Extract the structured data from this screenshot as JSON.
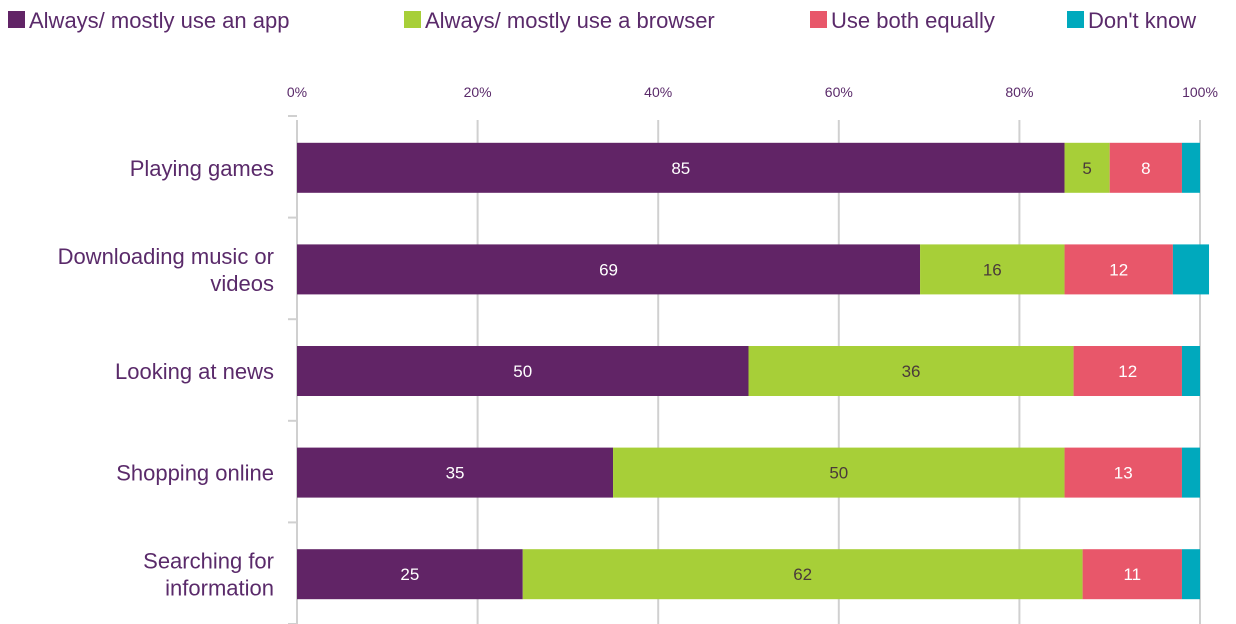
{
  "chart_data": {
    "type": "bar",
    "orientation": "horizontal",
    "stacked": true,
    "categories": [
      [
        "Playing games"
      ],
      [
        "Downloading music or",
        "videos"
      ],
      [
        "Looking at news"
      ],
      [
        "Shopping online"
      ],
      [
        "Searching for",
        "information"
      ]
    ],
    "series": [
      {
        "name": "Always/ mostly use an app",
        "color": "#612466",
        "label_color": "#ffffff",
        "values": [
          85,
          69,
          50,
          35,
          25
        ],
        "labels": [
          "85",
          "69",
          "50",
          "35",
          "25"
        ]
      },
      {
        "name": "Always/ mostly use a browser",
        "color": "#a7cf38",
        "label_color": "#4a3a3a",
        "values": [
          5,
          16,
          36,
          50,
          62
        ],
        "labels": [
          "5",
          "16",
          "36",
          "50",
          "62"
        ]
      },
      {
        "name": "Use both equally",
        "color": "#e8576a",
        "label_color": "#ffffff",
        "values": [
          8,
          12,
          12,
          13,
          11
        ],
        "labels": [
          "8",
          "12",
          "12",
          "13",
          "11"
        ]
      },
      {
        "name": "Don't know",
        "color": "#00a9bd",
        "label_color": "#ffffff",
        "values": [
          2,
          4,
          2,
          2,
          2
        ],
        "labels": [
          "",
          "",
          "",
          "",
          ""
        ]
      }
    ],
    "x_ticks": [
      "0%",
      "20%",
      "40%",
      "60%",
      "80%",
      "100%"
    ],
    "xlim": [
      0,
      100
    ],
    "x_axis_position": "top",
    "grid": true,
    "legend_position": "top",
    "gridline_color": "#d0d0d0"
  }
}
